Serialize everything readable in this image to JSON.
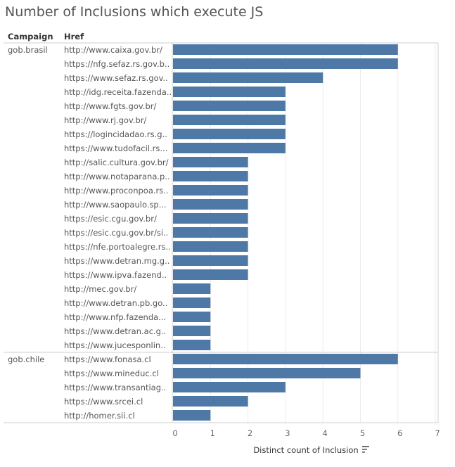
{
  "title": "Number of Inclusions which execute JS",
  "chart_data": {
    "type": "bar",
    "orientation": "horizontal",
    "title": "Number of Inclusions which execute JS",
    "row_headers": [
      "Campaign",
      "Href"
    ],
    "xlabel": "Distinct count of Inclusion",
    "xlim": [
      0,
      7
    ],
    "xticks": [
      0,
      1,
      2,
      3,
      4,
      5,
      6,
      7
    ],
    "grid": true,
    "bar_color": "#4e79a7",
    "groups": [
      {
        "campaign": "gob.brasil",
        "rows": [
          {
            "href": "http://www.caixa.gov.br/",
            "value": 6
          },
          {
            "href": "https://nfg.sefaz.rs.gov.b..",
            "value": 6
          },
          {
            "href": "https://www.sefaz.rs.gov..",
            "value": 4
          },
          {
            "href": "http://idg.receita.fazenda..",
            "value": 3
          },
          {
            "href": "http://www.fgts.gov.br/",
            "value": 3
          },
          {
            "href": "http://www.rj.gov.br/",
            "value": 3
          },
          {
            "href": "https://logincidadao.rs.g..",
            "value": 3
          },
          {
            "href": "https://www.tudofacil.rs...",
            "value": 3
          },
          {
            "href": "http://salic.cultura.gov.br/",
            "value": 2
          },
          {
            "href": "http://www.notaparana.p..",
            "value": 2
          },
          {
            "href": "http://www.proconpoa.rs..",
            "value": 2
          },
          {
            "href": "http://www.saopaulo.sp...",
            "value": 2
          },
          {
            "href": "https://esic.cgu.gov.br/",
            "value": 2
          },
          {
            "href": "https://esic.cgu.gov.br/si..",
            "value": 2
          },
          {
            "href": "https://nfe.portoalegre.rs..",
            "value": 2
          },
          {
            "href": "https://www.detran.mg.g..",
            "value": 2
          },
          {
            "href": "https://www.ipva.fazend..",
            "value": 2
          },
          {
            "href": "http://mec.gov.br/",
            "value": 1
          },
          {
            "href": "http://www.detran.pb.go..",
            "value": 1
          },
          {
            "href": "http://www.nfp.fazenda...",
            "value": 1
          },
          {
            "href": "https://www.detran.ac.g..",
            "value": 1
          },
          {
            "href": "https://www.jucesponlin..",
            "value": 1
          }
        ]
      },
      {
        "campaign": "gob.chile",
        "rows": [
          {
            "href": "https://www.fonasa.cl",
            "value": 6
          },
          {
            "href": "https://www.mineduc.cl",
            "value": 5
          },
          {
            "href": "https://www.transantiag..",
            "value": 3
          },
          {
            "href": "https://www.srcei.cl",
            "value": 2
          },
          {
            "href": "http://homer.sii.cl",
            "value": 1
          }
        ]
      }
    ]
  }
}
